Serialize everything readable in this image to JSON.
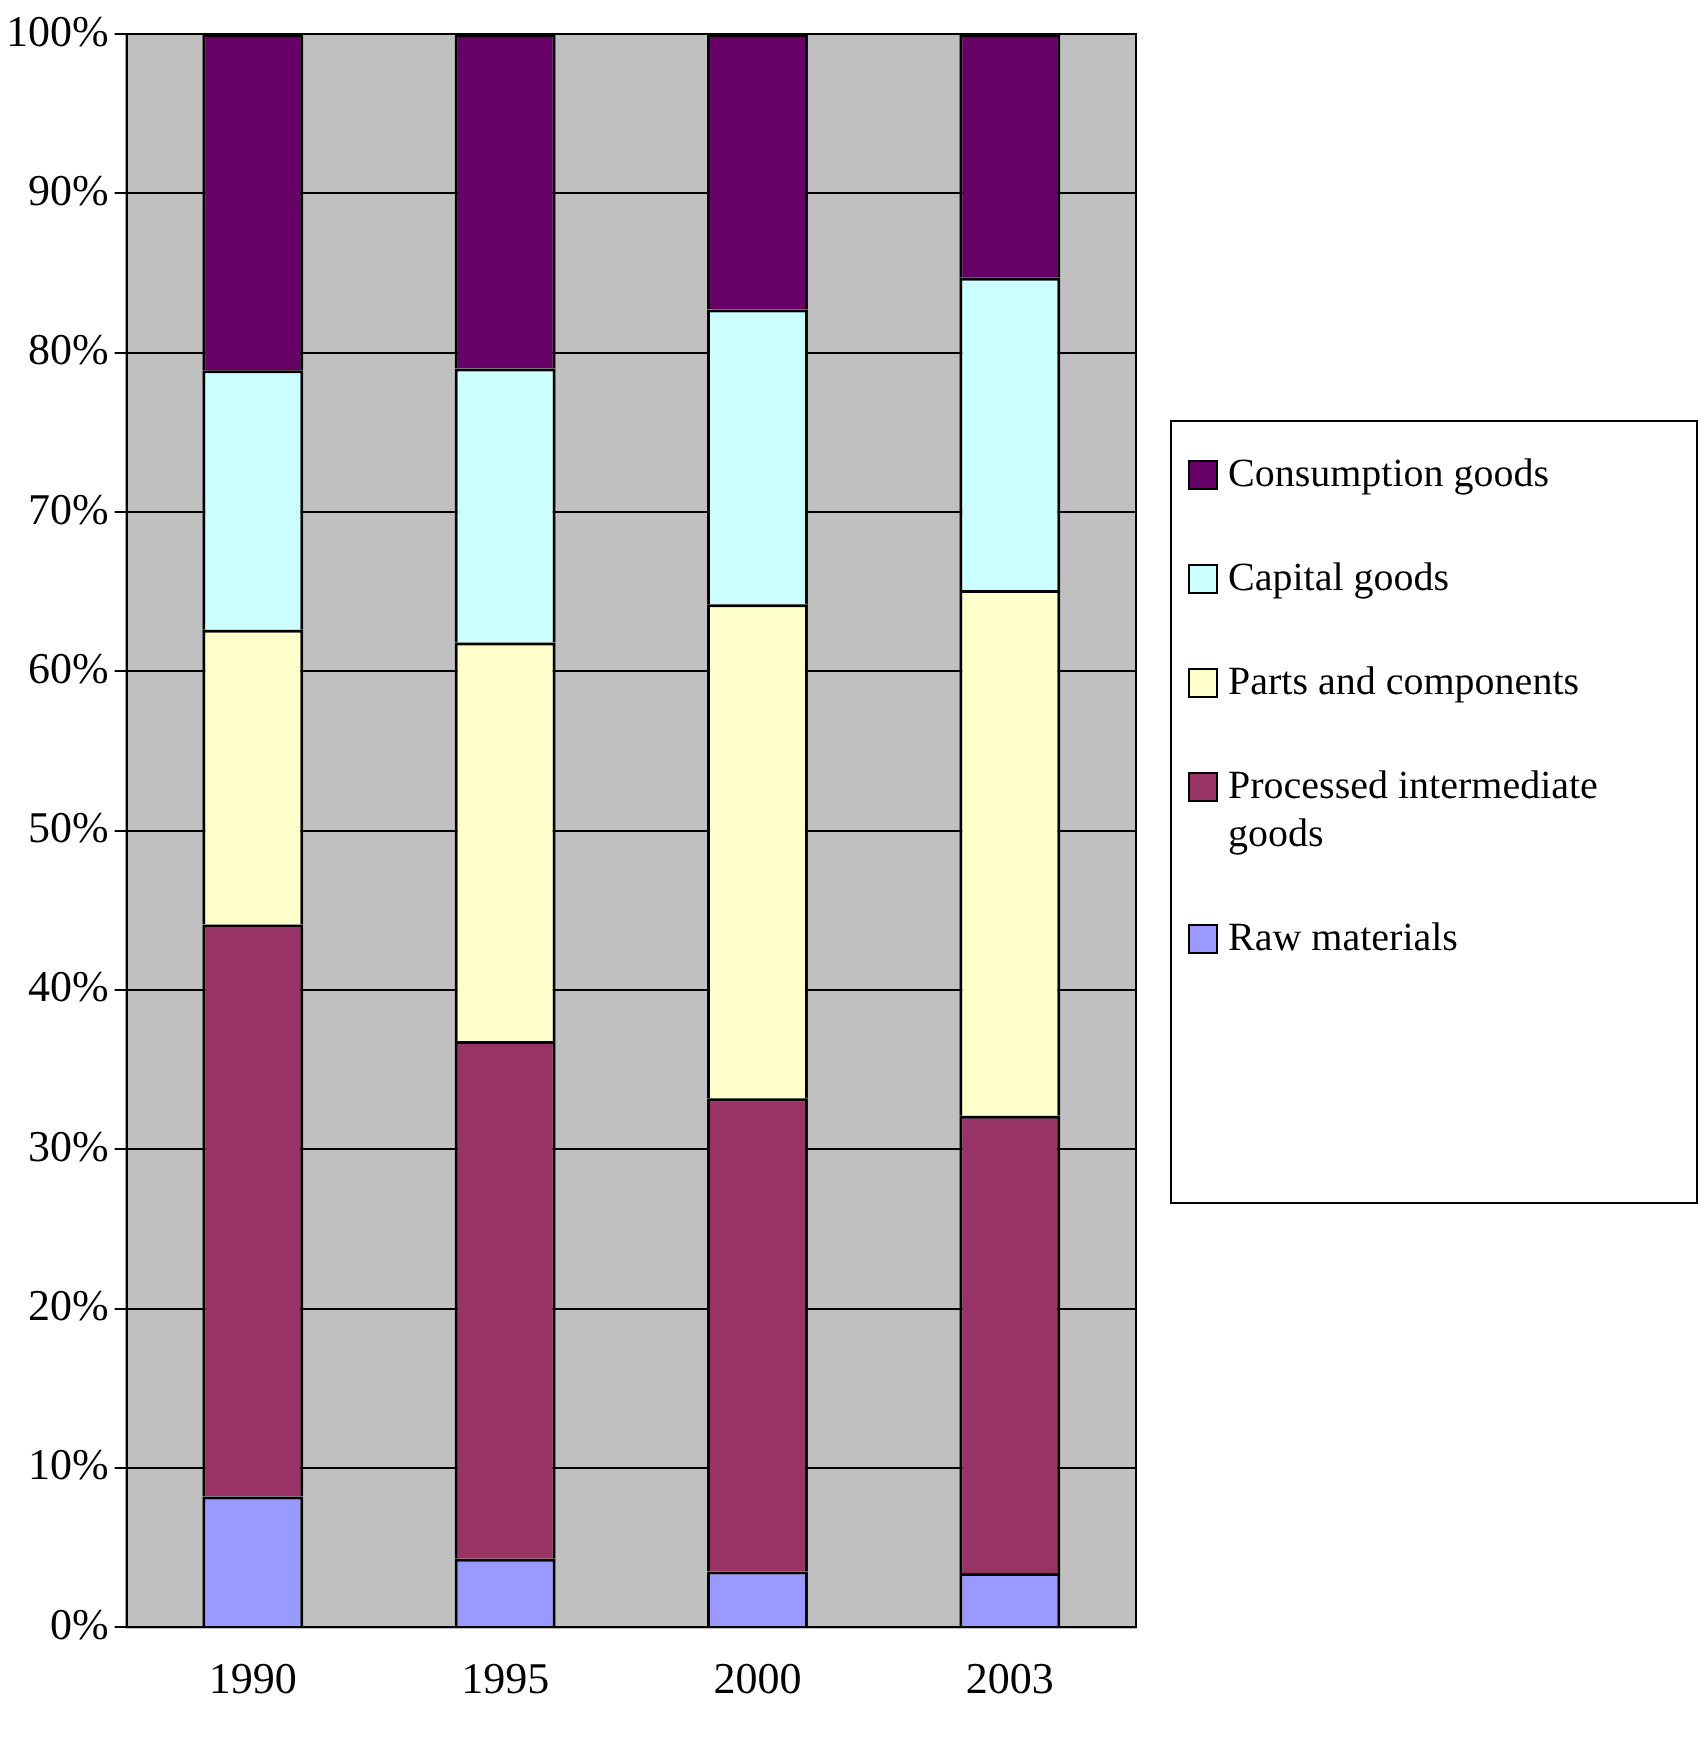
{
  "chart_data": {
    "type": "bar",
    "stacked": true,
    "categories": [
      "1990",
      "1995",
      "2000",
      "2003"
    ],
    "series": [
      {
        "name": "Raw materials",
        "color": "#9999ff",
        "values": [
          8.2,
          4.3,
          3.5,
          3.4
        ]
      },
      {
        "name": "Processed intermediate goods",
        "color": "#993366",
        "values": [
          35.9,
          32.5,
          29.7,
          28.7
        ]
      },
      {
        "name": "Parts and components",
        "color": "#ffffcc",
        "values": [
          18.5,
          25.0,
          31.0,
          33.0
        ]
      },
      {
        "name": "Capital goods",
        "color": "#ccffff",
        "values": [
          16.3,
          17.2,
          18.5,
          19.6
        ]
      },
      {
        "name": "Consumption goods",
        "color": "#660066",
        "values": [
          21.1,
          21.0,
          17.3,
          15.3
        ]
      }
    ],
    "ylim": [
      0,
      100
    ],
    "yticks": [
      {
        "value": 0,
        "label": "0%"
      },
      {
        "value": 10,
        "label": "10%"
      },
      {
        "value": 20,
        "label": "20%"
      },
      {
        "value": 30,
        "label": "30%"
      },
      {
        "value": 40,
        "label": "40%"
      },
      {
        "value": 50,
        "label": "50%"
      },
      {
        "value": 60,
        "label": "60%"
      },
      {
        "value": 70,
        "label": "70%"
      },
      {
        "value": 80,
        "label": "80%"
      },
      {
        "value": 90,
        "label": "90%"
      },
      {
        "value": 100,
        "label": "100%"
      }
    ],
    "grid": "y",
    "legend": "right"
  }
}
